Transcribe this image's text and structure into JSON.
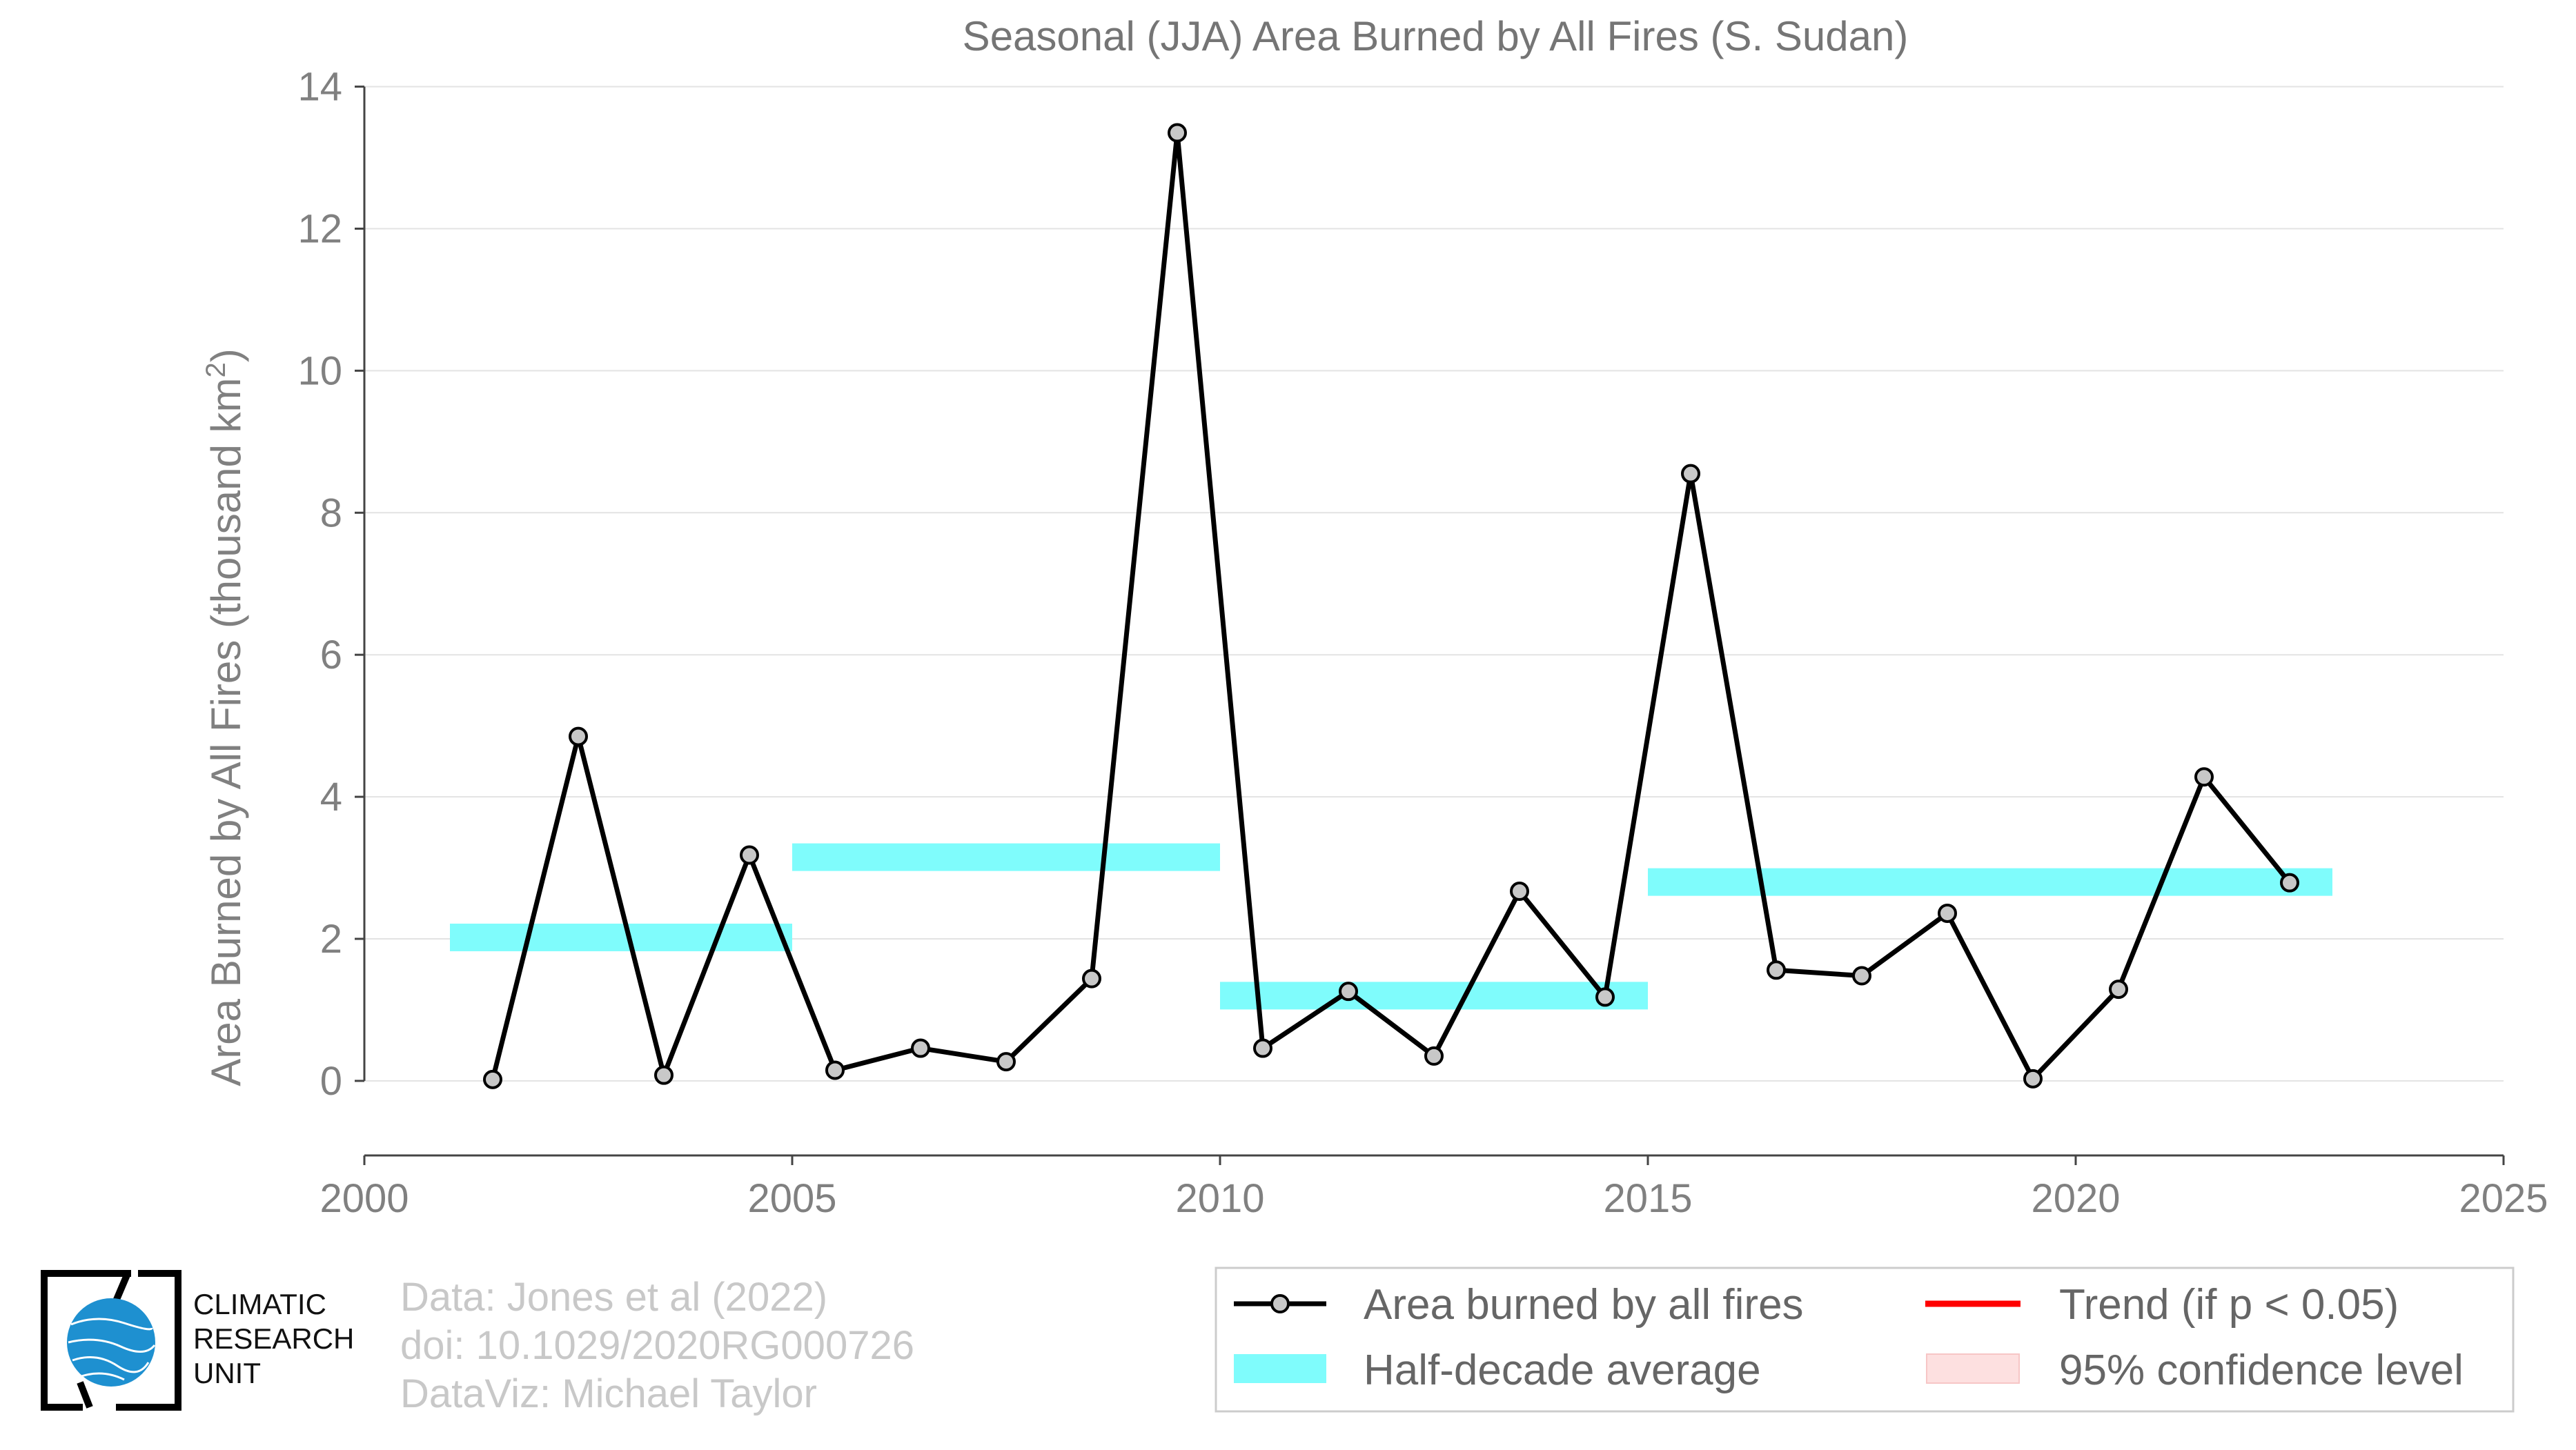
{
  "chart_data": {
    "type": "line",
    "title": "Seasonal (JJA) Area Burned by All Fires (S. Sudan)",
    "xlabel": "",
    "ylabel": "Area Burned by All Fires (thousand km",
    "ylabel_sup": "2",
    "ylabel_close": ")",
    "xlim": [
      2000,
      2025
    ],
    "ylim": [
      -1.05,
      14.2
    ],
    "xticks": [
      2000,
      2005,
      2010,
      2015,
      2020,
      2025
    ],
    "yticks": [
      0,
      2,
      4,
      6,
      8,
      10,
      12,
      14
    ],
    "grid": "horizontal",
    "legend_position": "bottom-right",
    "series": [
      {
        "name": "Area burned by all fires",
        "color": "#000000",
        "marker_fill": "#c8c8c8",
        "x": [
          2001.5,
          2002.5,
          2003.5,
          2004.5,
          2005.5,
          2006.5,
          2007.5,
          2008.5,
          2009.5,
          2010.5,
          2011.5,
          2012.5,
          2013.5,
          2014.5,
          2015.5,
          2016.5,
          2017.5,
          2018.5,
          2019.5,
          2020.5,
          2021.5,
          2022.5
        ],
        "y": [
          0.02,
          4.85,
          0.08,
          3.18,
          0.15,
          0.46,
          0.27,
          1.44,
          13.35,
          0.46,
          1.26,
          0.35,
          2.67,
          1.18,
          8.55,
          1.56,
          1.48,
          2.36,
          0.03,
          1.29,
          4.28,
          2.79
        ]
      },
      {
        "name": "Half-decade average",
        "color": "#7ffcfc",
        "segments": [
          {
            "x0": 2001,
            "x1": 2005,
            "y": 2.02
          },
          {
            "x0": 2005,
            "x1": 2010,
            "y": 3.15
          },
          {
            "x0": 2010,
            "x1": 2015,
            "y": 1.2
          },
          {
            "x0": 2015,
            "x1": 2023,
            "y": 2.8
          }
        ]
      }
    ],
    "legend": [
      {
        "label": "Area burned by all fires",
        "kind": "line-marker",
        "color": "#000000"
      },
      {
        "label": "Trend (if p < 0.05)",
        "kind": "line",
        "color": "#ff0000"
      },
      {
        "label": "Half-decade average",
        "kind": "patch",
        "color": "#7ffcfc"
      },
      {
        "label": "95% confidence level",
        "kind": "patch",
        "color": "#fde0e0"
      }
    ]
  },
  "credits": {
    "line1": "Data: Jones et al (2022)",
    "line2": "doi: 10.1029/2020RG000726",
    "line3": "DataViz: Michael Taylor"
  },
  "logo": {
    "line1": "CLIMATIC",
    "line2": "RESEARCH",
    "line3": "UNIT",
    "color": "#1e90d0"
  }
}
